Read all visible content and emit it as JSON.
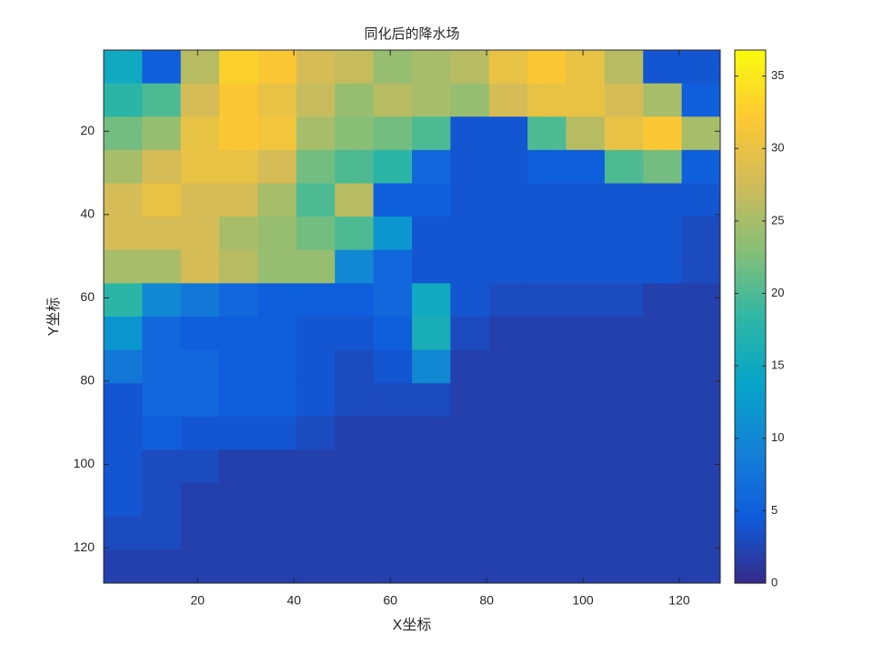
{
  "chart_data": {
    "type": "heatmap",
    "title": "同化后的降水场",
    "xlabel": "X坐标",
    "ylabel": "Y坐标",
    "x": [
      4.5,
      12.5,
      20.5,
      28.5,
      36.5,
      44.5,
      52.5,
      60.5,
      68.5,
      76.5,
      84.5,
      92.5,
      100.5,
      108.5,
      116.5,
      124.5
    ],
    "y": [
      4.5,
      12.5,
      20.5,
      28.5,
      36.5,
      44.5,
      52.5,
      60.5,
      68.5,
      76.5,
      84.5,
      92.5,
      100.5,
      108.5,
      116.5,
      124.5
    ],
    "z": [
      [
        15,
        5,
        26,
        33,
        32,
        28,
        27,
        24,
        25,
        26,
        30,
        32,
        30,
        26,
        4,
        4
      ],
      [
        18,
        20,
        28,
        32,
        30,
        27,
        24,
        26,
        25,
        24,
        28,
        30,
        30,
        28,
        25,
        5
      ],
      [
        22,
        24,
        30,
        32,
        31,
        25,
        23,
        22,
        20,
        4,
        4,
        20,
        26,
        30,
        32,
        25
      ],
      [
        25,
        28,
        30,
        30,
        28,
        22,
        20,
        18,
        6,
        4,
        4,
        5,
        5,
        20,
        22,
        5
      ],
      [
        28,
        30,
        28,
        28,
        25,
        20,
        26,
        5,
        5,
        4,
        4,
        4,
        4,
        4,
        4,
        4
      ],
      [
        28,
        28,
        28,
        25,
        24,
        22,
        20,
        12,
        4,
        4,
        4,
        4,
        4,
        4,
        4,
        3
      ],
      [
        25,
        25,
        28,
        26,
        24,
        24,
        10,
        6,
        4,
        4,
        4,
        4,
        4,
        4,
        4,
        3
      ],
      [
        18,
        10,
        8,
        6,
        5,
        5,
        5,
        6,
        15,
        4,
        3,
        3,
        3,
        3,
        2,
        2
      ],
      [
        12,
        6,
        5,
        5,
        5,
        4,
        4,
        5,
        16,
        3,
        2,
        2,
        2,
        2,
        2,
        2
      ],
      [
        8,
        6,
        6,
        5,
        5,
        4,
        3,
        4,
        10,
        2,
        2,
        2,
        2,
        2,
        2,
        2
      ],
      [
        4,
        6,
        6,
        5,
        5,
        4,
        3,
        3,
        3,
        2,
        2,
        2,
        2,
        2,
        2,
        2
      ],
      [
        4,
        5,
        4,
        4,
        4,
        3,
        2,
        2,
        2,
        2,
        2,
        2,
        2,
        2,
        2,
        2
      ],
      [
        4,
        3,
        3,
        2,
        2,
        2,
        2,
        2,
        2,
        2,
        2,
        2,
        2,
        2,
        2,
        2
      ],
      [
        4,
        3,
        2,
        2,
        2,
        2,
        2,
        2,
        2,
        2,
        2,
        2,
        2,
        2,
        2,
        2
      ],
      [
        3,
        3,
        2,
        2,
        2,
        2,
        2,
        2,
        2,
        2,
        2,
        2,
        2,
        2,
        2,
        2
      ],
      [
        2,
        2,
        2,
        2,
        2,
        2,
        2,
        2,
        2,
        2,
        2,
        2,
        2,
        2,
        2,
        2
      ]
    ],
    "xlim": [
      0.5,
      128.5
    ],
    "ylim": [
      0.5,
      128.5
    ],
    "y_reversed": true,
    "xticks": [
      20,
      40,
      60,
      80,
      100,
      120
    ],
    "yticks": [
      20,
      40,
      60,
      80,
      100,
      120
    ],
    "clim": [
      0,
      36.8
    ],
    "cticks": [
      0,
      5,
      10,
      15,
      20,
      25,
      30,
      35
    ],
    "colormap": [
      "#352a87",
      "#0f5cdd",
      "#1481d6",
      "#06a4ca",
      "#2eb7a4",
      "#87bf77",
      "#d1bb59",
      "#fec832",
      "#f9fb0e"
    ]
  }
}
